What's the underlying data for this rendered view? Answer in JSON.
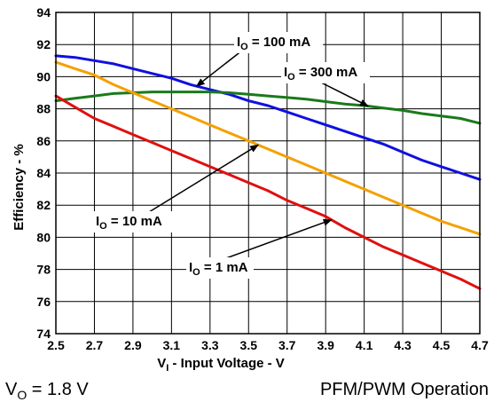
{
  "chart_data": {
    "type": "line",
    "title": "",
    "xlabel": {
      "prefix": "V",
      "sub": "I",
      "suffix": " - Input Voltage - V"
    },
    "ylabel": "Efficiency - %",
    "xlim": [
      2.5,
      4.7
    ],
    "ylim": [
      74,
      94
    ],
    "x_ticks": [
      "2.5",
      "2.7",
      "2.9",
      "3.1",
      "3.3",
      "3.5",
      "3.7",
      "3.9",
      "4.1",
      "4.3",
      "4.5",
      "4.7"
    ],
    "y_ticks": [
      "74",
      "76",
      "78",
      "80",
      "82",
      "84",
      "86",
      "88",
      "90",
      "92",
      "94"
    ],
    "grid": true,
    "x": [
      2.5,
      2.6,
      2.7,
      2.8,
      2.9,
      3.0,
      3.1,
      3.2,
      3.3,
      3.4,
      3.5,
      3.6,
      3.7,
      3.8,
      3.9,
      4.0,
      4.1,
      4.2,
      4.3,
      4.4,
      4.5,
      4.6,
      4.7
    ],
    "series": [
      {
        "name": "I_O = 100 mA",
        "color": "#1010e0",
        "values": [
          91.3,
          91.2,
          91.0,
          90.8,
          90.5,
          90.2,
          89.9,
          89.5,
          89.2,
          88.9,
          88.5,
          88.2,
          87.8,
          87.4,
          87.0,
          86.6,
          86.2,
          85.8,
          85.3,
          84.8,
          84.4,
          84.0,
          83.6
        ]
      },
      {
        "name": "I_O = 300 mA",
        "color": "#1a7a1a",
        "values": [
          88.5,
          88.65,
          88.8,
          88.95,
          89.0,
          89.05,
          89.05,
          89.05,
          89.05,
          89.0,
          88.9,
          88.8,
          88.7,
          88.6,
          88.45,
          88.3,
          88.2,
          88.05,
          87.9,
          87.7,
          87.55,
          87.4,
          87.1
        ]
      },
      {
        "name": "I_O = 10 mA",
        "color": "#f5a000",
        "values": [
          90.9,
          90.5,
          90.1,
          89.5,
          89.0,
          88.5,
          88.0,
          87.5,
          87.0,
          86.5,
          86.0,
          85.5,
          85.0,
          84.5,
          84.0,
          83.5,
          83.0,
          82.5,
          82.0,
          81.5,
          81.0,
          80.6,
          80.2
        ]
      },
      {
        "name": "I_O = 1 mA",
        "color": "#e01010",
        "values": [
          88.8,
          88.1,
          87.4,
          86.9,
          86.4,
          85.9,
          85.4,
          84.9,
          84.4,
          83.9,
          83.4,
          82.9,
          82.3,
          81.8,
          81.3,
          80.6,
          80.0,
          79.4,
          78.9,
          78.4,
          77.9,
          77.4,
          76.8
        ]
      }
    ],
    "annotations": [
      {
        "series": "I_O = 100 mA",
        "prefix": "I",
        "sub": "O",
        "suffix": " = 100 mA",
        "point_x": 3.23
      },
      {
        "series": "I_O = 300 mA",
        "prefix": "I",
        "sub": "O",
        "suffix": " = 300 mA",
        "point_x": 4.12
      },
      {
        "series": "I_O = 10 mA",
        "prefix": "I",
        "sub": "O",
        "suffix": " = 10 mA",
        "point_x": 3.55
      },
      {
        "series": "I_O = 1 mA",
        "prefix": "I",
        "sub": "O",
        "suffix": " = 1 mA",
        "point_x": 3.93
      }
    ]
  },
  "footer": {
    "condition": {
      "prefix": "V",
      "sub": "O",
      "suffix": " = 1.8 V"
    },
    "mode": "PFM/PWM Operation"
  }
}
